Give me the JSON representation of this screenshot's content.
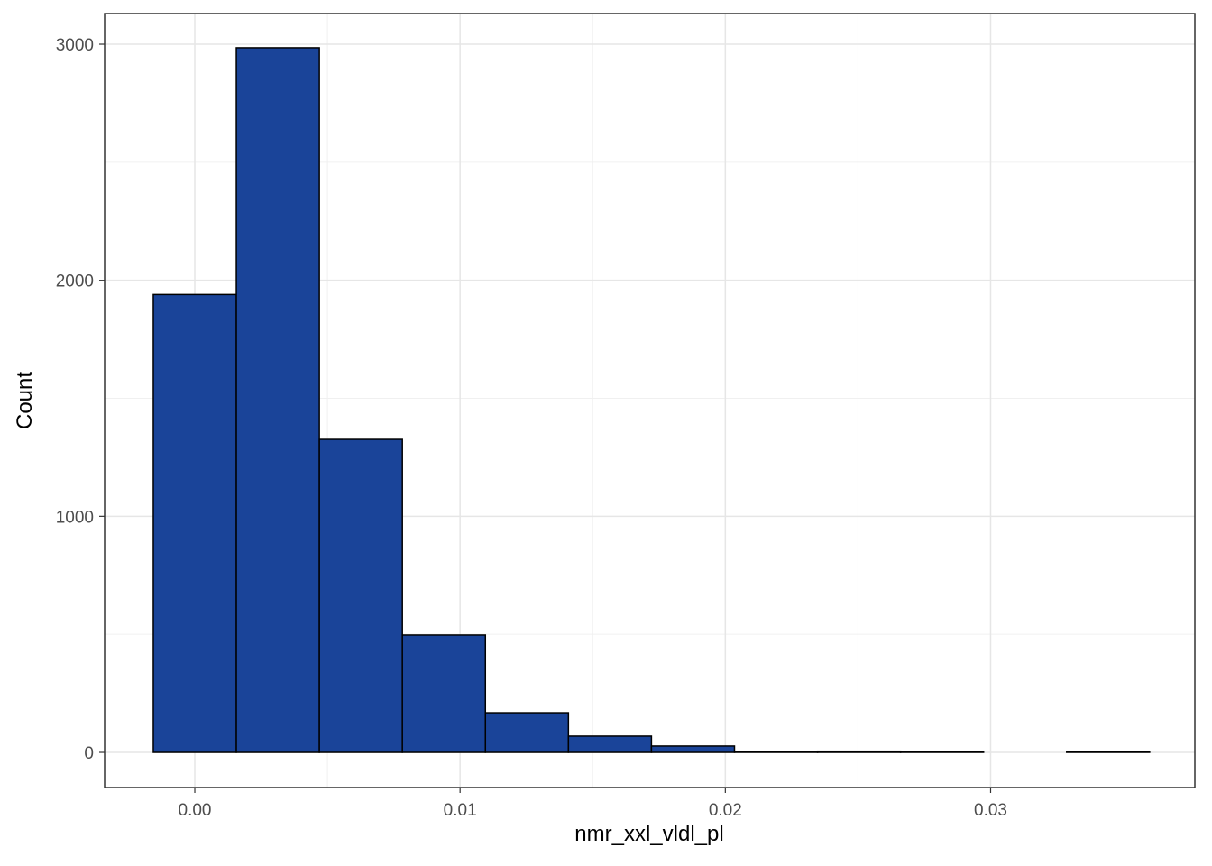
{
  "chart_data": {
    "type": "histogram",
    "x_label": "nmr_xxl_vldl_pl",
    "y_label": "Count",
    "bins": [
      -0.001565,
      0.001565,
      0.004695,
      0.007825,
      0.010955,
      0.014085,
      0.017215,
      0.020345,
      0.023475,
      0.026605,
      0.029735,
      0.032865,
      0.035995
    ],
    "values": [
      1940,
      2985,
      1326,
      497,
      168,
      69,
      27,
      2,
      5,
      1,
      0,
      1
    ],
    "color": "#1a4499",
    "edge_color": "#000000",
    "xlim": [
      -0.0034,
      0.0377
    ],
    "ylim": [
      -149,
      3130
    ],
    "xticks": [
      {
        "value": 0,
        "label": "0.00"
      },
      {
        "value": 0.01,
        "label": "0.01"
      },
      {
        "value": 0.02,
        "label": "0.02"
      },
      {
        "value": 0.03,
        "label": "0.03"
      }
    ],
    "yticks": [
      0,
      1000,
      2000,
      3000
    ],
    "grid": true
  }
}
